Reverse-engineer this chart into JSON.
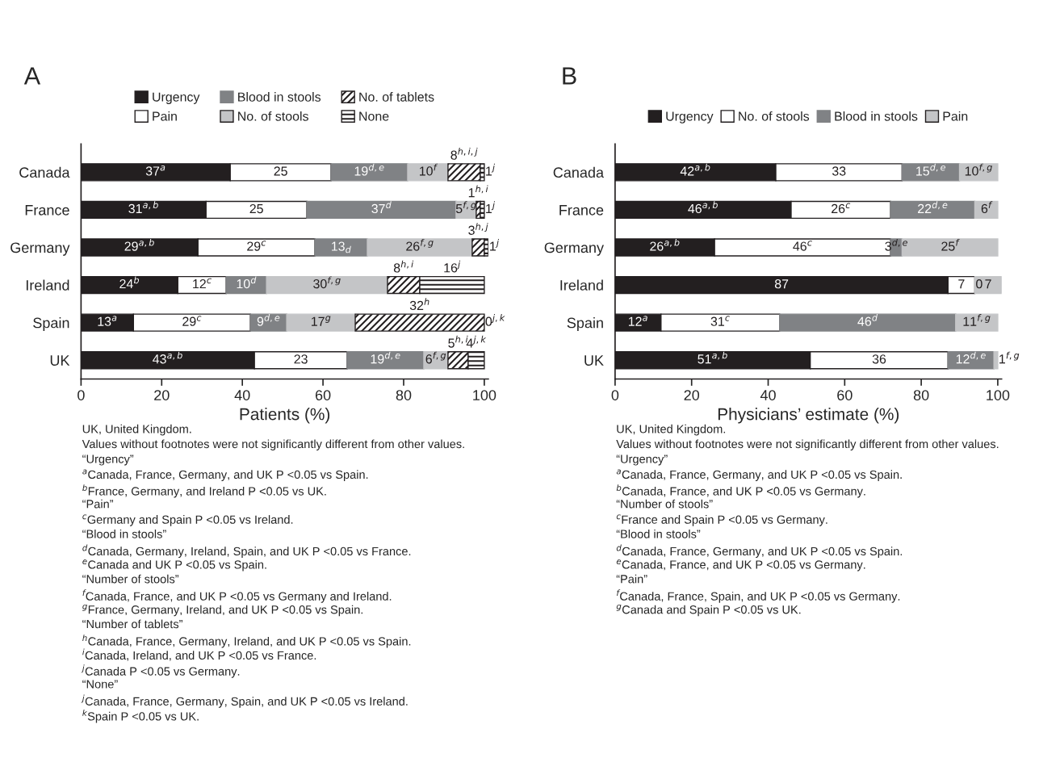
{
  "chart_data": [
    {
      "type": "bar",
      "orientation": "horizontal",
      "stacked": true,
      "title": "A",
      "xlabel": "Patients (%)",
      "categories": [
        "Canada",
        "France",
        "Germany",
        "Ireland",
        "Spain",
        "UK"
      ],
      "xlim": [
        0,
        101
      ],
      "xticks": [
        0,
        20,
        40,
        60,
        80,
        100
      ],
      "legend": "top",
      "grid": false,
      "series": [
        {
          "name": "Urgency",
          "color": "#231f20",
          "values": [
            37,
            31,
            29,
            24,
            13,
            43
          ],
          "value_labels": [
            "37$^{a}$",
            "31$^{a,b}$",
            "29$^{a,b}$",
            "24$^{b}$",
            "13$^{a}$",
            "43$^{a,b}$"
          ]
        },
        {
          "name": "Pain",
          "color": "#ffffff",
          "values": [
            25,
            25,
            29,
            12,
            29,
            23
          ],
          "value_labels": [
            "25",
            "25",
            "29$^{c}$",
            "12$^{c}$",
            "29$^{c}$",
            "23"
          ]
        },
        {
          "name": "Blood in stools",
          "color": "#808285",
          "values": [
            19,
            37,
            13,
            10,
            9,
            19
          ],
          "value_labels": [
            "19$^{d,e}$",
            "37$^{d}$",
            "13$_{d}$",
            "10$^{d}$",
            "9$^{d,e}$",
            "19$^{d,e}$"
          ]
        },
        {
          "name": "No. of stools",
          "color": "#c4c5c7",
          "values": [
            10,
            5,
            26,
            30,
            17,
            6
          ],
          "value_labels": [
            "10$^{f}$",
            "5$^{f,g}$",
            "26$^{f,g}$",
            "30$^{f,g}$",
            "17$^{g}$",
            "6$^{f,g}$"
          ]
        },
        {
          "name": "No. of tablets",
          "color": "#231f20",
          "values": [
            8,
            1,
            3,
            8,
            32,
            5
          ],
          "value_labels": [
            "8$^{h,i,j}$",
            "1$^{h,i}$",
            "3$^{h,j}$",
            "8$^{h,i}$",
            "32$^{h}$",
            "5$^{h,i}$"
          ]
        },
        {
          "name": "None",
          "color": "#231f20",
          "values": [
            1,
            1,
            1,
            16,
            0,
            4
          ],
          "value_labels": [
            "1$^{j}$",
            "1$^{j}$",
            "1$^{j}$",
            "16$^{j}$",
            "0$^{j,k}$",
            "4$^{j,k}$"
          ]
        }
      ],
      "annotations": [
        "UK, United Kingdom.",
        "Values without footnotes were not significantly different from other values.",
        "“Urgency”",
        "$^{a}$Canada, France, Germany, and UK P <0.05 vs Spain.",
        "$^{b}$France, Germany, and Ireland P <0.05 vs UK.",
        "“Pain”",
        "$^{c}$Germany and Spain P <0.05 vs Ireland.",
        "“Blood in stools”",
        "$^{d}$Canada, Germany, Ireland, Spain, and UK P <0.05 vs France.",
        "$^{e}$Canada and UK P <0.05 vs Spain.",
        "“Number of stools”",
        "$^{f}$Canada, France, and UK P <0.05 vs Germany and Ireland.",
        "$^{g}$France, Germany, Ireland, and UK P <0.05 vs Spain.",
        "“Number of tablets”",
        "$^{h}$Canada, France, Germany, Ireland, and UK P <0.05 vs Spain.",
        "$^{i}$Canada, Ireland, and UK P <0.05 vs France.",
        "$^{j}$Canada P <0.05 vs Germany.",
        "“None”",
        "$^{j}$Canada, France, Germany, Spain, and UK P <0.05 vs Ireland.",
        "$^{k}$Spain P <0.05 vs UK."
      ]
    },
    {
      "type": "bar",
      "orientation": "horizontal",
      "stacked": true,
      "title": "B",
      "xlabel": "Physicians’ estimate (%)",
      "categories": [
        "Canada",
        "France",
        "Germany",
        "Ireland",
        "Spain",
        "UK"
      ],
      "xlim": [
        0,
        101
      ],
      "xticks": [
        0,
        20,
        40,
        60,
        80,
        100
      ],
      "legend": "top",
      "grid": false,
      "series": [
        {
          "name": "Urgency",
          "color": "#231f20",
          "values": [
            42,
            46,
            26,
            87,
            12,
            51
          ],
          "value_labels": [
            "42$^{a,b}$",
            "46$^{a,b}$",
            "26$^{a,b}$",
            "87",
            "12$^{a}$",
            "51$^{a,b}$"
          ]
        },
        {
          "name": "No. of stools",
          "color": "#ffffff",
          "values": [
            33,
            26,
            46,
            7,
            31,
            36
          ],
          "value_labels": [
            "33",
            "26$^{c}$",
            "46$^{c}$",
            "7",
            "31$^{c}$",
            "36"
          ]
        },
        {
          "name": "Blood in stools",
          "color": "#808285",
          "values": [
            15,
            22,
            3,
            0,
            46,
            12
          ],
          "value_labels": [
            "15$^{d,e}$",
            "22$^{d,e}$",
            "3$^{d,e}$",
            "0",
            "46$^{d}$",
            "12$^{d,e}$"
          ]
        },
        {
          "name": "Pain",
          "color": "#c4c5c7",
          "values": [
            10,
            6,
            25,
            7,
            11,
            1
          ],
          "value_labels": [
            "10$^{f,g}$",
            "6$^{f}$",
            "25$^{f}$",
            "7",
            "11$^{f,g}$",
            "1$^{f,g}$"
          ]
        }
      ],
      "annotations": [
        "UK, United Kingdom.",
        "Values without footnotes were not significantly different from other values.",
        "“Urgency”",
        "$^{a}$Canada, France, Germany, and UK P <0.05 vs Spain.",
        "$^{b}$Canada, France, and UK P <0.05 vs Germany.",
        "“Number of stools”",
        "$^{c}$France and Spain P <0.05 vs Germany.",
        "“Blood in stools”",
        "$^{d}$Canada, France, Germany, and UK P <0.05 vs Spain.",
        "$^{e}$Canada, France, and UK P <0.05 vs Germany.",
        "“Pain”",
        "$^{f}$Canada, France, Spain, and UK P <0.05 vs Germany.",
        "$^{g}$Canada and Spain P <0.05 vs UK."
      ]
    }
  ]
}
